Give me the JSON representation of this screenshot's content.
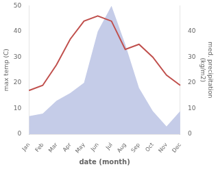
{
  "chart_data": {
    "type": "line",
    "categories": [
      "Jan",
      "Feb",
      "Mar",
      "Apr",
      "May",
      "Jun",
      "Jul",
      "Aug",
      "Sep",
      "Oct",
      "Nov",
      "Dec"
    ],
    "series": [
      {
        "type": "area",
        "color": "#c5cce8",
        "axis": "y2",
        "values": [
          7,
          8,
          13,
          16,
          20,
          40,
          50,
          35,
          18,
          9,
          3,
          9
        ]
      },
      {
        "type": "line",
        "color": "#c0504d",
        "values": [
          17,
          19,
          27,
          37,
          44,
          46,
          44,
          33,
          35,
          30,
          23,
          19
        ]
      }
    ],
    "xlabel": "date (month)",
    "ylabel": "max temp (C)",
    "y2label": "med. precipitation\n(kg/m2)",
    "ylim": [
      0,
      50
    ],
    "yticks": [
      0,
      10,
      20,
      30,
      40,
      50
    ],
    "y2lim": [
      0,
      50
    ],
    "y2ticks": [
      0,
      10,
      20,
      30,
      40
    ],
    "grid": false
  }
}
